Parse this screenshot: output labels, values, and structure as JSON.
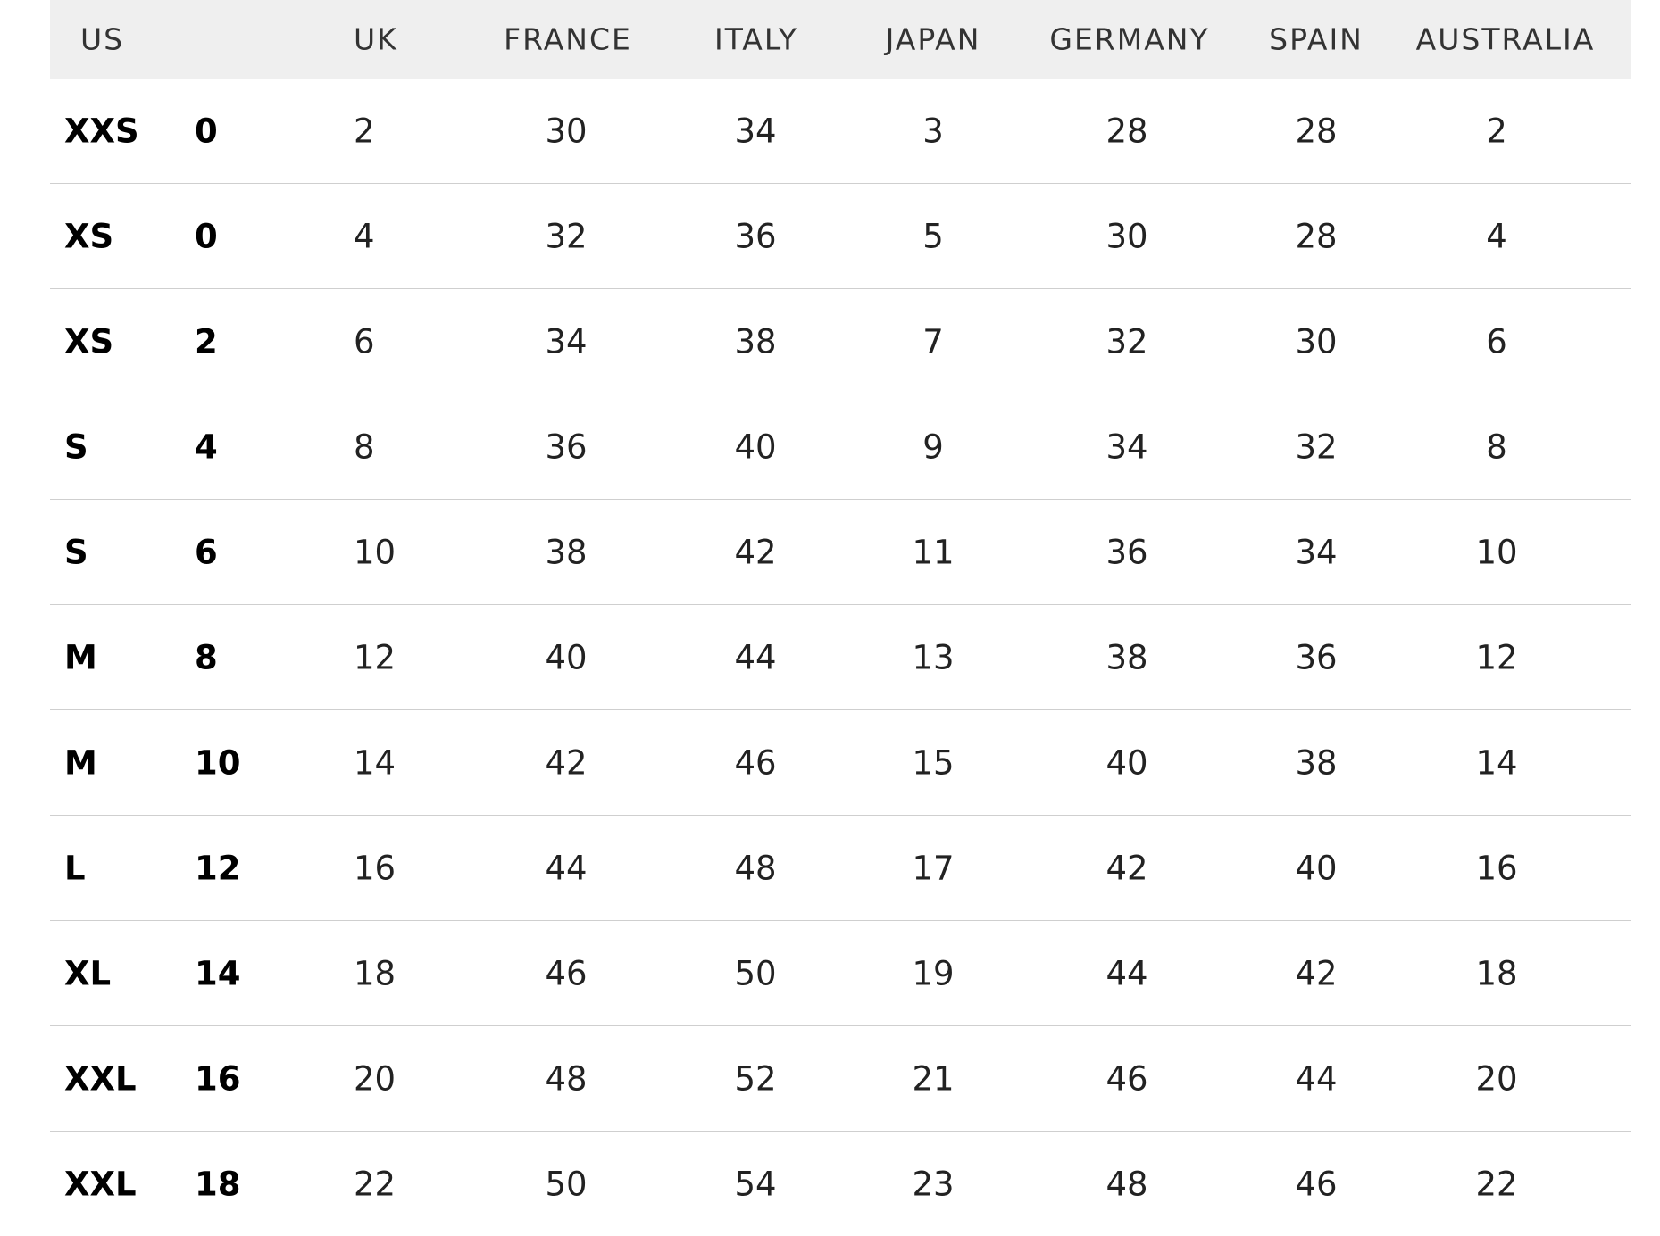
{
  "table": {
    "header": [
      "US",
      "UK",
      "FRANCE",
      "ITALY",
      "JAPAN",
      "GERMANY",
      "SPAIN",
      "AUSTRALIA"
    ],
    "rows": [
      [
        "XXS",
        0,
        2,
        30,
        34,
        3,
        28,
        28,
        2
      ],
      [
        "XS",
        0,
        4,
        32,
        36,
        5,
        30,
        28,
        4
      ],
      [
        "XS",
        2,
        6,
        34,
        38,
        7,
        32,
        30,
        6
      ],
      [
        "S",
        4,
        8,
        36,
        40,
        9,
        34,
        32,
        8
      ],
      [
        "S",
        6,
        10,
        38,
        42,
        11,
        36,
        34,
        10
      ],
      [
        "M",
        8,
        12,
        40,
        44,
        13,
        38,
        36,
        12
      ],
      [
        "M",
        10,
        14,
        42,
        46,
        15,
        40,
        38,
        14
      ],
      [
        "L",
        12,
        16,
        44,
        48,
        17,
        42,
        40,
        16
      ],
      [
        "XL",
        14,
        18,
        46,
        50,
        19,
        44,
        42,
        18
      ],
      [
        "XXL",
        16,
        20,
        48,
        52,
        21,
        46,
        44,
        20
      ],
      [
        "XXL",
        18,
        22,
        50,
        54,
        23,
        48,
        46,
        22
      ]
    ]
  }
}
